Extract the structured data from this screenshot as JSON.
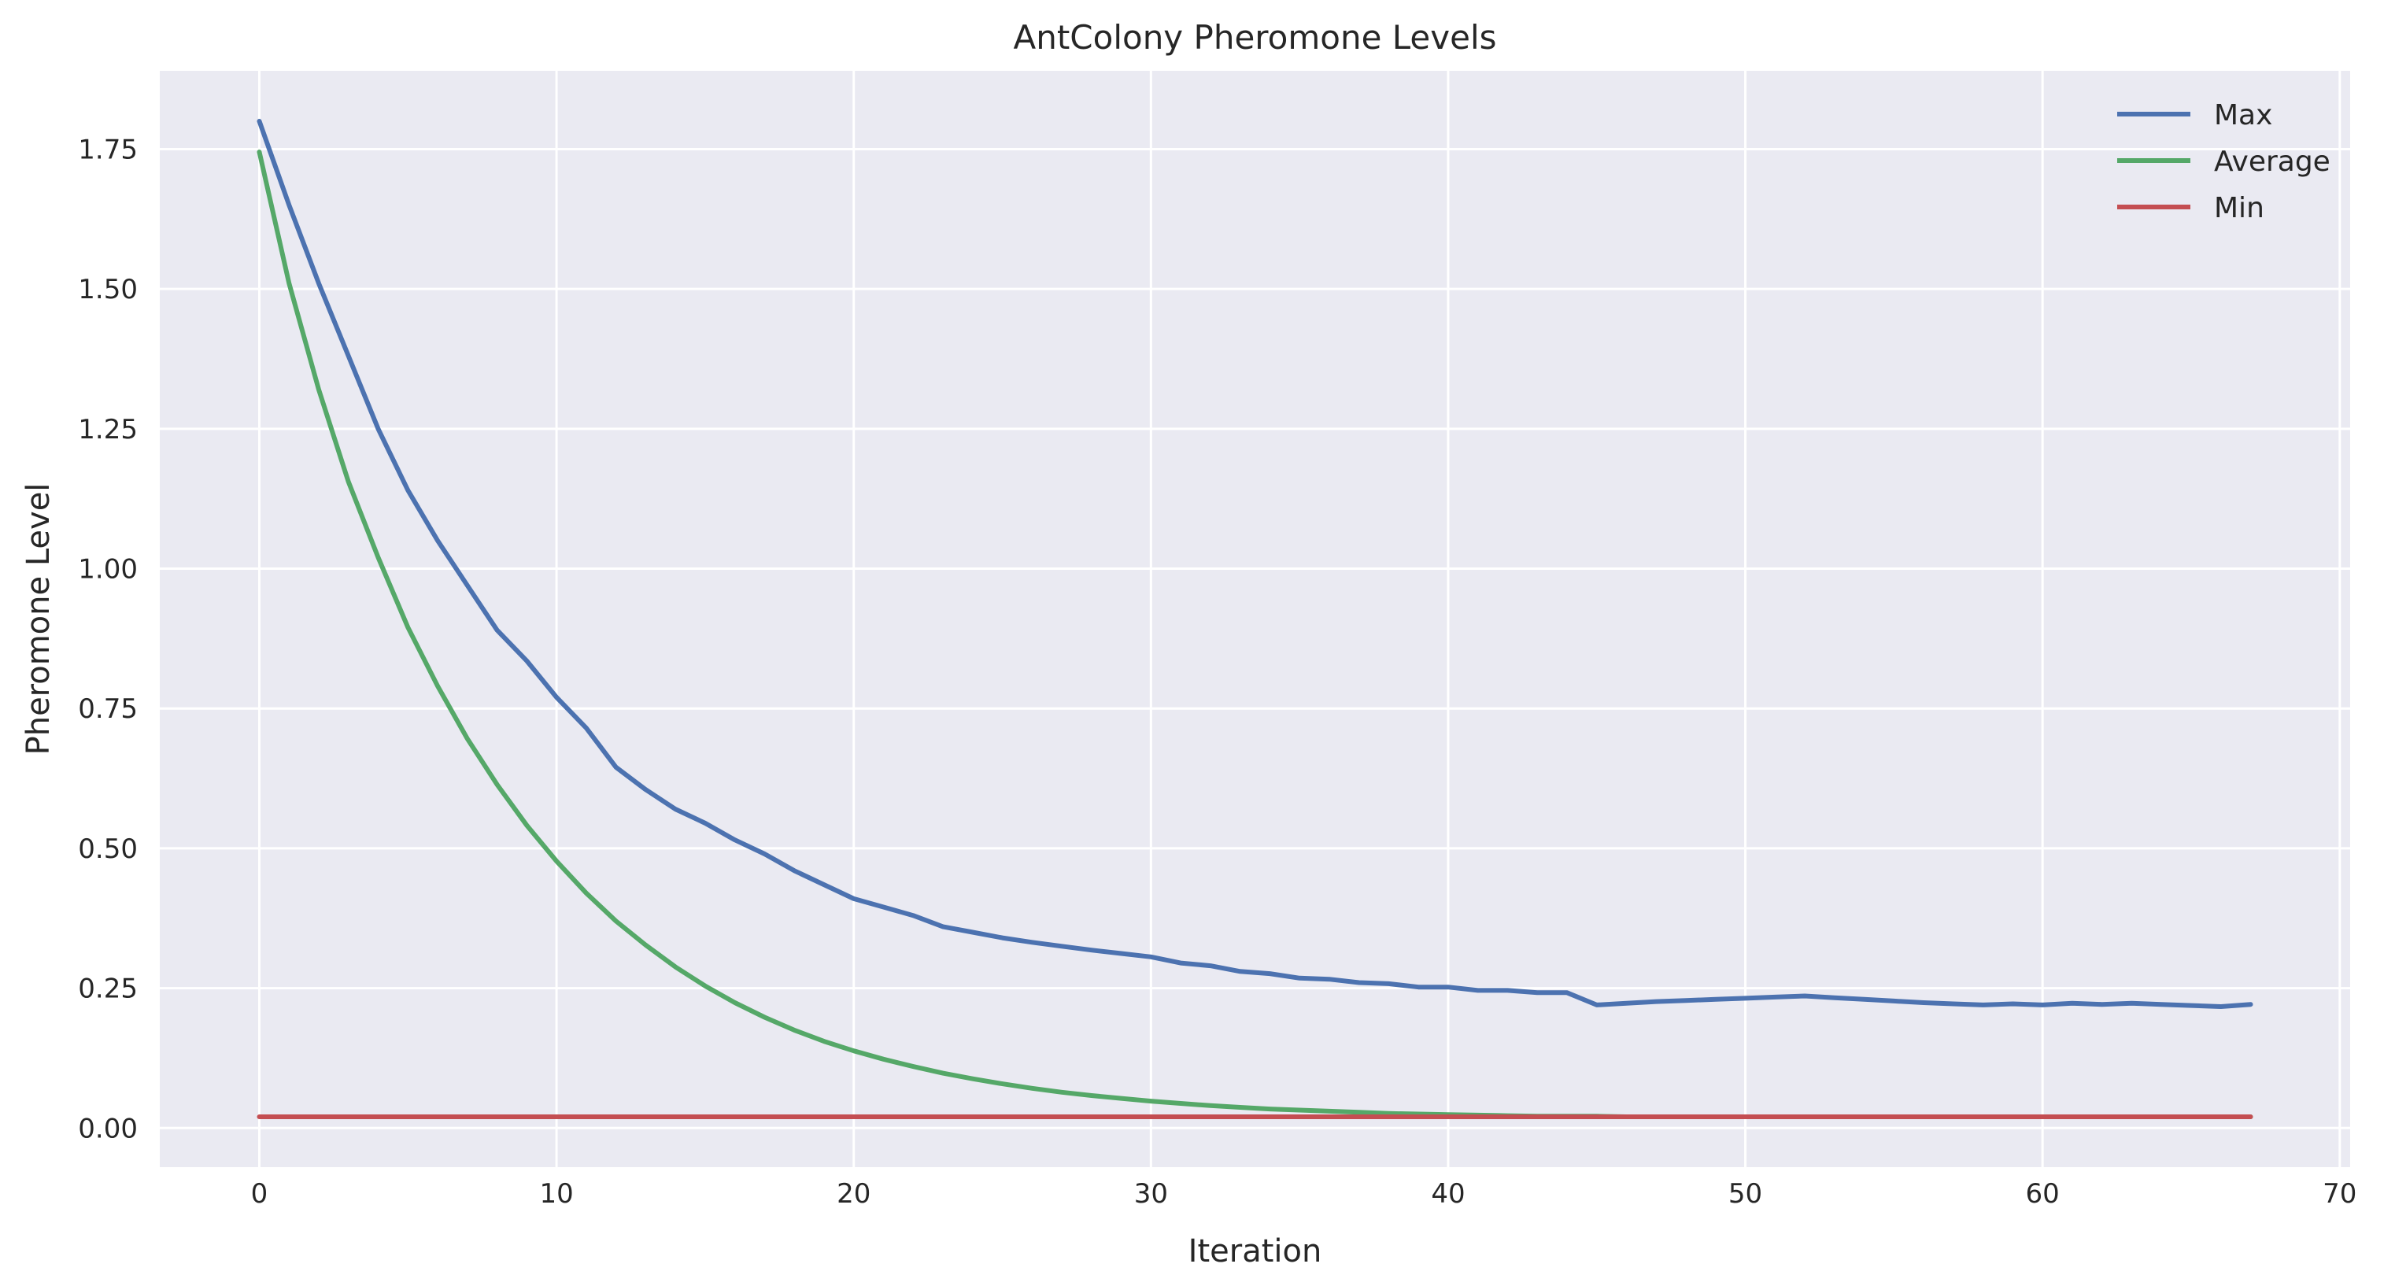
{
  "chart_data": {
    "type": "line",
    "title": "AntColony Pheromone Levels",
    "xlabel": "Iteration",
    "ylabel": "Pheromone Level",
    "xlim": [
      -3.35,
      70.35
    ],
    "ylim": [
      -0.07,
      1.89
    ],
    "xticks": [
      0,
      10,
      20,
      30,
      40,
      50,
      60,
      70
    ],
    "xtick_labels": [
      "0",
      "10",
      "20",
      "30",
      "40",
      "50",
      "60",
      "70"
    ],
    "yticks": [
      0.0,
      0.25,
      0.5,
      0.75,
      1.0,
      1.25,
      1.5,
      1.75
    ],
    "ytick_labels": [
      "0.00",
      "0.25",
      "0.50",
      "0.75",
      "1.00",
      "1.25",
      "1.50",
      "1.75"
    ],
    "grid": true,
    "legend_position": "top-right",
    "background_color": "#eaeaf2",
    "grid_color": "#ffffff",
    "x": [
      0,
      1,
      2,
      3,
      4,
      5,
      6,
      7,
      8,
      9,
      10,
      11,
      12,
      13,
      14,
      15,
      16,
      17,
      18,
      19,
      20,
      21,
      22,
      23,
      24,
      25,
      26,
      27,
      28,
      29,
      30,
      31,
      32,
      33,
      34,
      35,
      36,
      37,
      38,
      39,
      40,
      41,
      42,
      43,
      44,
      45,
      46,
      47,
      48,
      49,
      50,
      51,
      52,
      53,
      54,
      55,
      56,
      57,
      58,
      59,
      60,
      61,
      62,
      63,
      64,
      65,
      66,
      67
    ],
    "series": [
      {
        "name": "Max",
        "color": "#4c72b0",
        "values": [
          1.8,
          1.65,
          1.51,
          1.38,
          1.25,
          1.14,
          1.05,
          0.97,
          0.89,
          0.835,
          0.77,
          0.715,
          0.645,
          0.605,
          0.57,
          0.545,
          0.515,
          0.49,
          0.46,
          0.435,
          0.41,
          0.395,
          0.38,
          0.36,
          0.35,
          0.34,
          0.332,
          0.325,
          0.318,
          0.312,
          0.306,
          0.295,
          0.29,
          0.28,
          0.276,
          0.268,
          0.266,
          0.26,
          0.258,
          0.252,
          0.252,
          0.246,
          0.246,
          0.242,
          0.242,
          0.22,
          0.223,
          0.226,
          0.228,
          0.23,
          0.232,
          0.234,
          0.236,
          0.233,
          0.23,
          0.227,
          0.224,
          0.222,
          0.22,
          0.222,
          0.22,
          0.223,
          0.221,
          0.223,
          0.221,
          0.219,
          0.217,
          0.221
        ]
      },
      {
        "name": "Average",
        "color": "#55a868",
        "values": [
          1.745,
          1.51,
          1.32,
          1.155,
          1.02,
          0.895,
          0.79,
          0.696,
          0.614,
          0.541,
          0.477,
          0.42,
          0.37,
          0.327,
          0.288,
          0.254,
          0.224,
          0.198,
          0.175,
          0.155,
          0.138,
          0.123,
          0.11,
          0.098,
          0.088,
          0.079,
          0.071,
          0.064,
          0.058,
          0.053,
          0.048,
          0.044,
          0.04,
          0.037,
          0.034,
          0.032,
          0.03,
          0.028,
          0.026,
          0.025,
          0.024,
          0.023,
          0.022,
          0.021,
          0.021,
          0.021,
          0.02,
          0.02,
          0.02,
          0.02,
          0.02,
          0.02,
          0.02,
          0.02,
          0.02,
          0.02,
          0.02,
          0.02,
          0.02,
          0.02,
          0.02,
          0.02,
          0.02,
          0.02,
          0.02,
          0.02,
          0.02,
          0.02
        ]
      },
      {
        "name": "Min",
        "color": "#c44e52",
        "values": [
          0.02,
          0.02,
          0.02,
          0.02,
          0.02,
          0.02,
          0.02,
          0.02,
          0.02,
          0.02,
          0.02,
          0.02,
          0.02,
          0.02,
          0.02,
          0.02,
          0.02,
          0.02,
          0.02,
          0.02,
          0.02,
          0.02,
          0.02,
          0.02,
          0.02,
          0.02,
          0.02,
          0.02,
          0.02,
          0.02,
          0.02,
          0.02,
          0.02,
          0.02,
          0.02,
          0.02,
          0.02,
          0.02,
          0.02,
          0.02,
          0.02,
          0.02,
          0.02,
          0.02,
          0.02,
          0.02,
          0.02,
          0.02,
          0.02,
          0.02,
          0.02,
          0.02,
          0.02,
          0.02,
          0.02,
          0.02,
          0.02,
          0.02,
          0.02,
          0.02,
          0.02,
          0.02,
          0.02,
          0.02,
          0.02,
          0.02,
          0.02,
          0.02
        ]
      }
    ]
  }
}
